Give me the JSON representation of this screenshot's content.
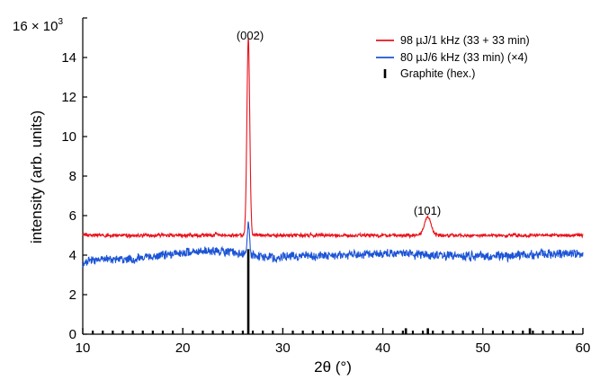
{
  "chart_data": {
    "type": "line",
    "xlabel": "2θ (°)",
    "ylabel": "intensity (arb. units)",
    "y_multiplier_label": "× 10",
    "y_multiplier_exp": "3",
    "xlim": [
      10,
      60
    ],
    "ylim": [
      0,
      16000
    ],
    "x_ticks": [
      10,
      20,
      30,
      40,
      50,
      60
    ],
    "x_minor_step": 1,
    "y_ticks": [
      0,
      2000,
      4000,
      6000,
      8000,
      10000,
      12000,
      14000,
      16000
    ],
    "y_tick_labels": [
      "0",
      "2",
      "4",
      "6",
      "8",
      "10",
      "12",
      "14",
      "16"
    ],
    "grid": false,
    "legend_position": "top-right",
    "annotations": [
      {
        "text": "(002)",
        "x": 26.5,
        "y": 15000
      },
      {
        "text": "(101)",
        "x": 44.5,
        "y": 6000
      }
    ],
    "series": [
      {
        "name": "98 µJ/1 kHz (33 + 33 min)",
        "color": "#e8121b",
        "kind": "line",
        "baseline": 5000,
        "noise": 90,
        "peaks": [
          {
            "x": 26.55,
            "height": 10000,
            "width": 0.14
          },
          {
            "x": 44.5,
            "height": 950,
            "width": 0.32
          },
          {
            "x": 23.4,
            "height": 120,
            "width": 0.1
          }
        ]
      },
      {
        "name": "80 µJ/6 kHz (33 min) (×4)",
        "color": "#1c54d6",
        "kind": "line",
        "baseline": 4000,
        "noise": 230,
        "peaks": [
          {
            "x": 26.55,
            "height": 1600,
            "width": 0.12
          }
        ]
      },
      {
        "name": "Graphite (hex.)",
        "color": "#000000",
        "kind": "stick",
        "x": [
          26.55,
          42.3,
          44.5,
          54.7
        ],
        "values": [
          4300,
          300,
          300,
          300
        ]
      }
    ]
  }
}
